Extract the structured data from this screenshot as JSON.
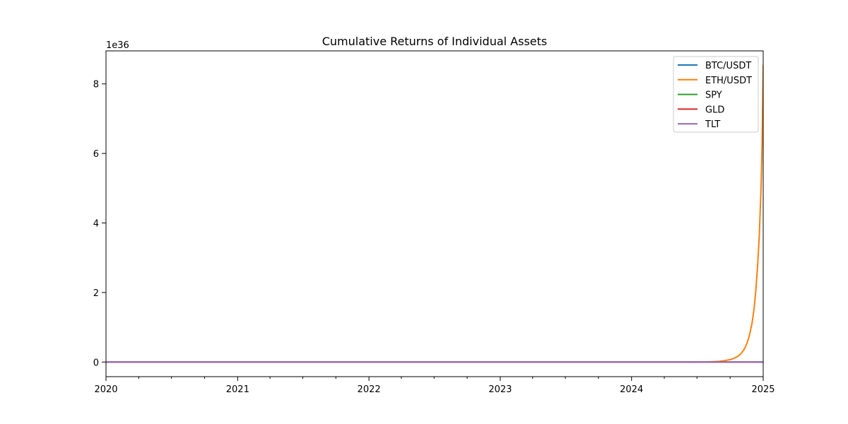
{
  "chart_data": {
    "type": "line",
    "title": "Cumulative Returns of Individual Assets",
    "xlabel": "",
    "ylabel": "",
    "x_axis": "date",
    "xlim": [
      "2020-01-01",
      "2025-01-01"
    ],
    "ylim": [
      -0.42,
      8.95
    ],
    "y_scale_label": "1e36",
    "y_scale_factor": 1e+36,
    "x_ticks": [
      "2020",
      "2021",
      "2022",
      "2023",
      "2024",
      "2025"
    ],
    "y_ticks": [
      "0",
      "2",
      "4",
      "6",
      "8"
    ],
    "y_tick_values": [
      0,
      2,
      4,
      6,
      8
    ],
    "grid": false,
    "legend_position": "top-right",
    "series": [
      {
        "name": "BTC/USDT",
        "color": "#1f77b4",
        "x": [
          "2020-01-01",
          "2025-01-01"
        ],
        "values": [
          0,
          0
        ]
      },
      {
        "name": "ETH/USDT",
        "color": "#ff7f0e",
        "x": [
          "2020-01-01",
          "2024-06-01",
          "2024-08-01",
          "2024-09-01",
          "2024-09-15",
          "2024-10-01",
          "2024-10-10",
          "2024-10-20",
          "2024-10-27",
          "2024-11-03",
          "2024-11-10",
          "2024-11-17",
          "2024-11-24",
          "2024-12-01",
          "2024-12-06",
          "2024-12-11",
          "2024-12-16",
          "2024-12-21",
          "2024-12-26",
          "2024-12-29",
          "2025-01-01"
        ],
        "values": [
          0,
          0,
          0.005,
          0.02,
          0.04,
          0.07,
          0.1,
          0.15,
          0.2,
          0.28,
          0.38,
          0.54,
          0.78,
          1.12,
          1.48,
          2.0,
          2.7,
          3.6,
          5.0,
          6.3,
          8.55
        ]
      },
      {
        "name": "SPY",
        "color": "#2ca02c",
        "x": [
          "2020-01-01",
          "2025-01-01"
        ],
        "values": [
          0,
          0
        ]
      },
      {
        "name": "GLD",
        "color": "#d62728",
        "x": [
          "2020-01-01",
          "2025-01-01"
        ],
        "values": [
          0,
          0
        ]
      },
      {
        "name": "TLT",
        "color": "#9467bd",
        "x": [
          "2020-01-01",
          "2025-01-01"
        ],
        "values": [
          0,
          0
        ]
      }
    ]
  }
}
